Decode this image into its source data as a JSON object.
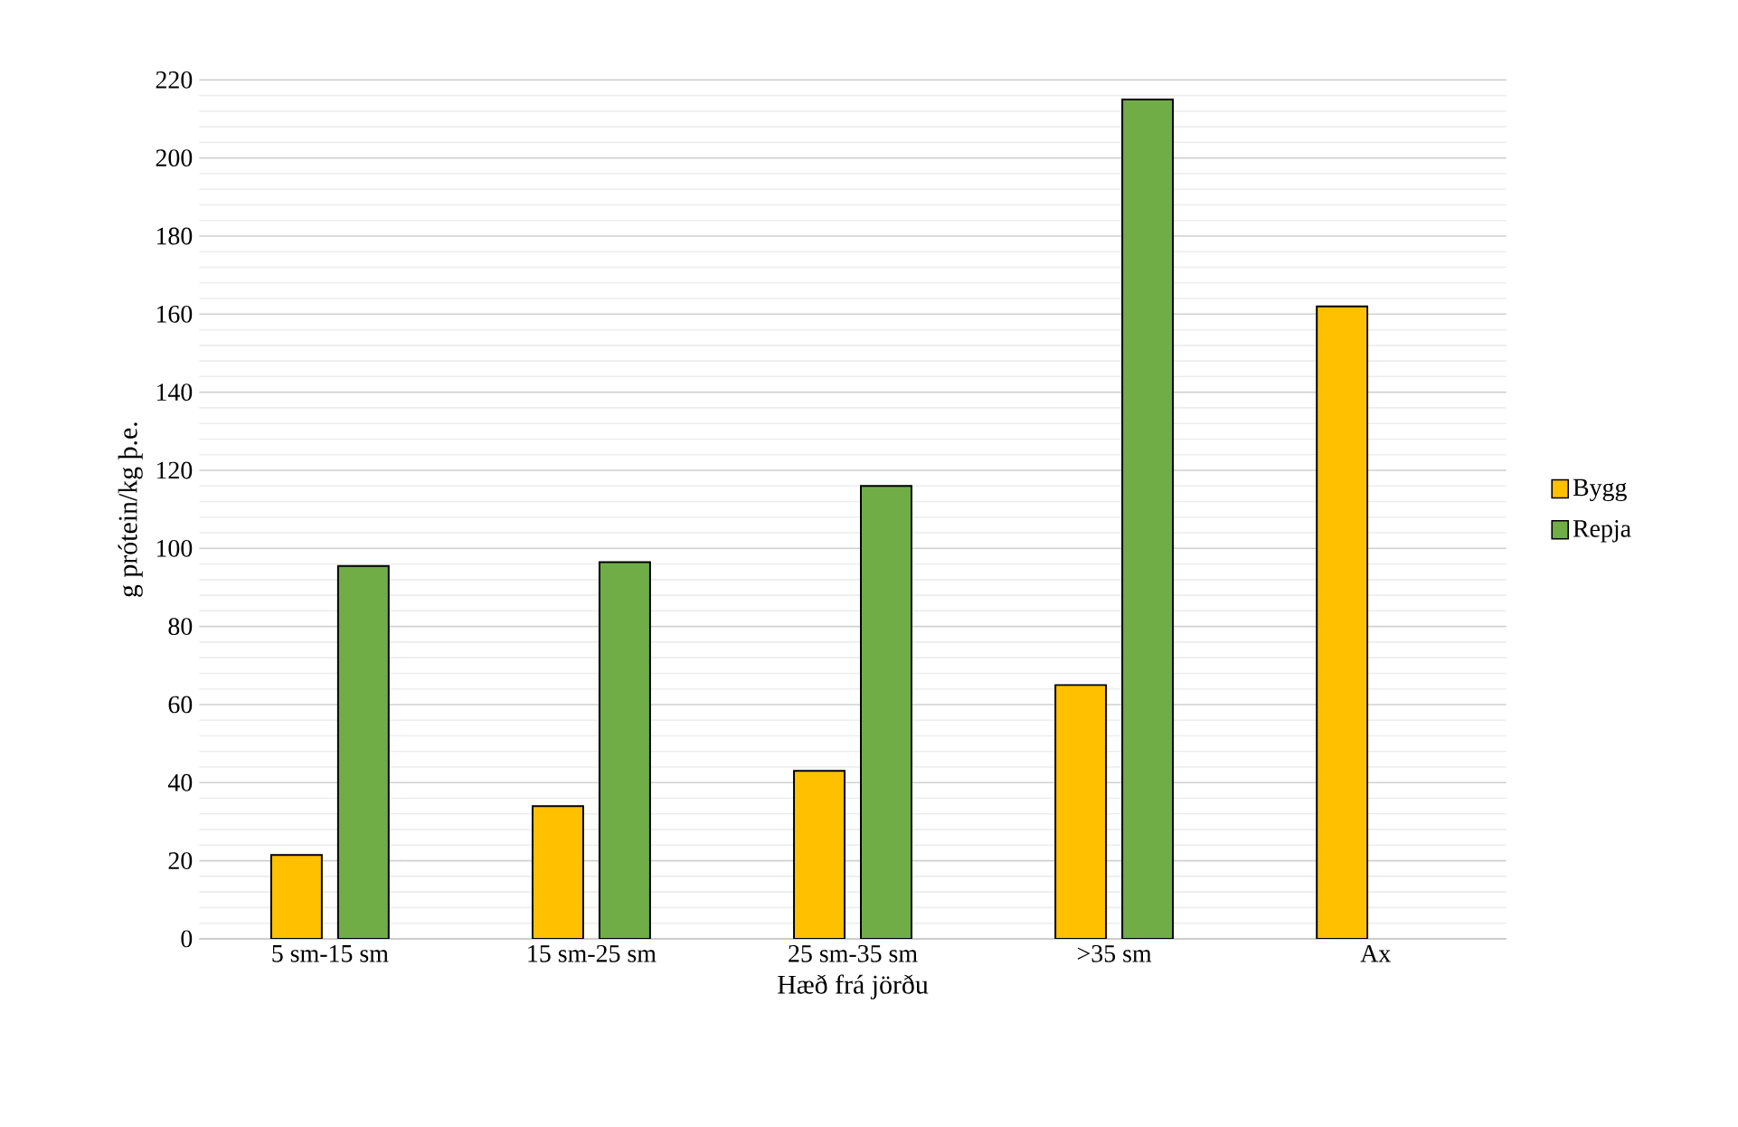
{
  "chart_data": {
    "type": "bar",
    "xlabel": "Hæð frá jörðu",
    "ylabel": "g prótein/kg þ.e.",
    "categories": [
      "5 sm-15 sm",
      "15 sm-25 sm",
      "25 sm-35 sm",
      ">35 sm",
      "Ax"
    ],
    "series": [
      {
        "name": "Bygg",
        "color": "#ffc000",
        "values": [
          21.5,
          34,
          43,
          65,
          162
        ]
      },
      {
        "name": "Repja",
        "color": "#70ad47",
        "values": [
          95.5,
          96.5,
          116,
          215,
          null
        ]
      }
    ],
    "ylim": [
      0,
      220
    ],
    "yticks": [
      0,
      20,
      40,
      60,
      80,
      100,
      120,
      140,
      160,
      180,
      200,
      220
    ],
    "grid": "y",
    "legend": "right"
  }
}
